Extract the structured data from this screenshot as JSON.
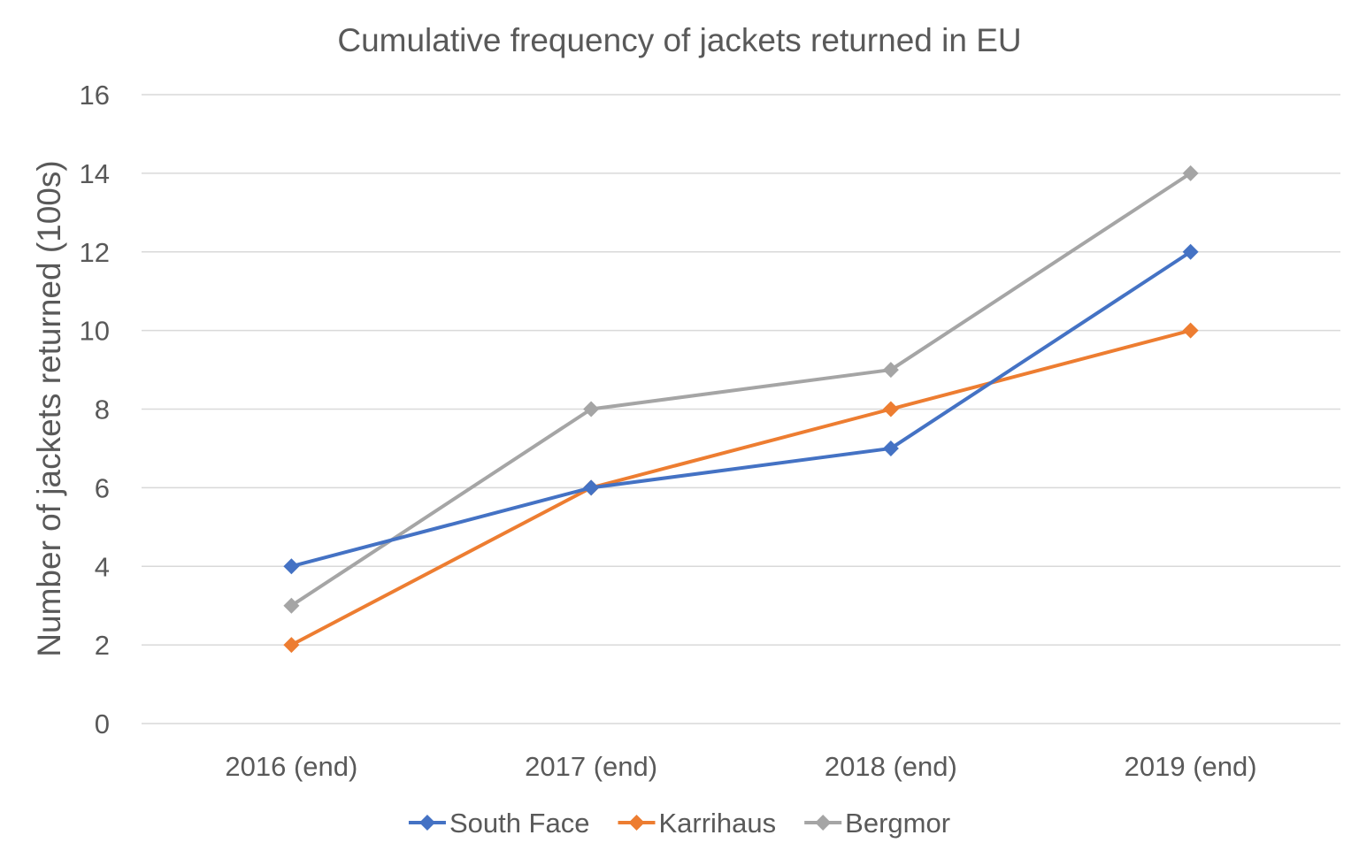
{
  "chart_data": {
    "type": "line",
    "title": "Cumulative frequency of jackets returned in EU",
    "xlabel": "",
    "ylabel": "Number of jackets returned (100s)",
    "categories": [
      "2016 (end)",
      "2017 (end)",
      "2018 (end)",
      "2019 (end)"
    ],
    "ylim": [
      0,
      16
    ],
    "yticks": [
      0,
      2,
      4,
      6,
      8,
      10,
      12,
      14,
      16
    ],
    "grid": true,
    "legend_position": "bottom",
    "marker": "diamond",
    "series": [
      {
        "name": "South Face",
        "color": "#4472c4",
        "values": [
          4,
          6,
          7,
          12
        ]
      },
      {
        "name": "Karrihaus",
        "color": "#ed7d31",
        "values": [
          2,
          6,
          8,
          10
        ]
      },
      {
        "name": "Bergmor",
        "color": "#a5a5a5",
        "values": [
          3,
          8,
          9,
          14
        ]
      }
    ]
  }
}
